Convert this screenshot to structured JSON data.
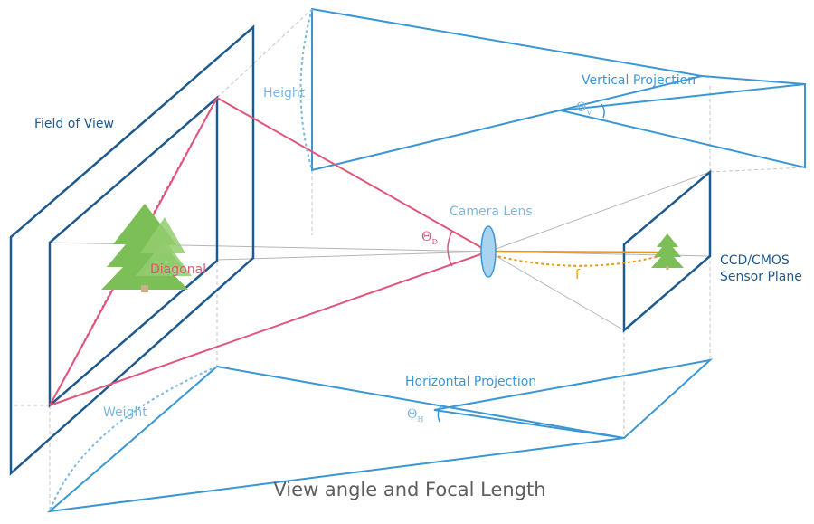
{
  "labels": {
    "field_of_view": "Field of View",
    "height": "Height",
    "weight": "Weight",
    "diagonal": "Diagonal",
    "vertical_projection": "Vertical Projection",
    "horizontal_projection": "Horizontal Projection",
    "camera_lens": "Camera Lens",
    "sensor_line1": "CCD/CMOS",
    "sensor_line2": "Sensor Plane",
    "focal": "f",
    "theta": "Θ",
    "theta_v_sub": "V",
    "theta_h_sub": "H",
    "theta_d_sub": "D"
  },
  "caption": "View angle and Focal Length",
  "colors": {
    "dark_blue": "#1f5a8e",
    "blue": "#3b97d3",
    "light_blue": "#7ab8e0",
    "pink": "#e0557a",
    "orange": "#e39a1e",
    "gray": "#bdbdbd",
    "tree": "#7cbf57"
  },
  "icons": [
    "tree-icon",
    "tree-icon",
    "lens-icon"
  ]
}
